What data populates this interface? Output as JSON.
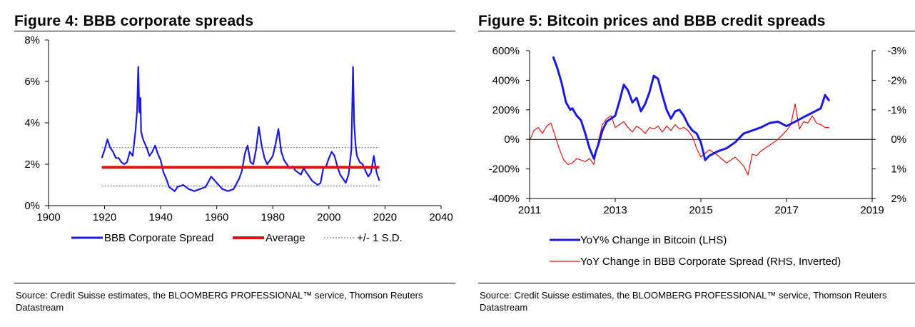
{
  "chart_data": [
    {
      "type": "line",
      "title": "Figure 4: BBB corporate spreads",
      "x_ticks": [
        "1900",
        "1920",
        "1940",
        "1960",
        "1980",
        "2000",
        "2020",
        "2040"
      ],
      "y_ticks": [
        "0%",
        "2%",
        "4%",
        "6%",
        "8%"
      ],
      "xlim": [
        1900,
        2040
      ],
      "ylim": [
        0,
        8
      ],
      "series": [
        {
          "name": "BBB Corporate Spread",
          "color": "#1a1adf",
          "x": [
            1919,
            1920,
            1921,
            1922,
            1923,
            1924,
            1925,
            1926,
            1927,
            1928,
            1929,
            1930,
            1931,
            1931.6,
            1932,
            1932.4,
            1932.8,
            1933,
            1933.5,
            1934,
            1935,
            1936,
            1937,
            1938,
            1939,
            1940,
            1941,
            1942,
            1943,
            1944,
            1945,
            1946,
            1948,
            1950,
            1952,
            1954,
            1956,
            1958,
            1960,
            1962,
            1964,
            1966,
            1968,
            1969,
            1970,
            1971,
            1972,
            1973,
            1974,
            1975,
            1976,
            1977,
            1978,
            1979,
            1980,
            1981,
            1982,
            1983,
            1984,
            1985,
            1986,
            1987,
            1988,
            1989,
            1990,
            1991,
            1992,
            1993,
            1994,
            1995,
            1996,
            1997,
            1998,
            1999,
            2000,
            2001,
            2002,
            2003,
            2004,
            2005,
            2006,
            2007,
            2008,
            2008.6,
            2009,
            2009.5,
            2010,
            2011,
            2012,
            2013,
            2014,
            2015,
            2016,
            2017,
            2018
          ],
          "values": [
            2.3,
            2.7,
            3.2,
            2.8,
            2.6,
            2.3,
            2.3,
            2.1,
            2.0,
            2.1,
            2.6,
            2.4,
            3.6,
            4.6,
            6.7,
            4.5,
            5.2,
            3.6,
            3.3,
            3.1,
            2.8,
            2.4,
            2.6,
            2.9,
            2.5,
            2.2,
            1.6,
            1.3,
            0.9,
            0.8,
            0.7,
            0.9,
            1.0,
            0.8,
            0.7,
            0.8,
            0.9,
            1.4,
            1.1,
            0.8,
            0.7,
            0.8,
            1.3,
            1.7,
            2.5,
            2.9,
            2.1,
            2.0,
            2.7,
            3.8,
            2.9,
            2.3,
            2.0,
            2.2,
            2.4,
            3.0,
            3.7,
            2.6,
            2.2,
            2.0,
            1.8,
            1.9,
            1.7,
            1.6,
            1.5,
            1.8,
            1.6,
            1.4,
            1.2,
            1.1,
            1.0,
            1.1,
            1.8,
            1.9,
            2.3,
            2.6,
            2.4,
            1.9,
            1.5,
            1.3,
            1.1,
            1.5,
            2.7,
            6.7,
            4.0,
            2.9,
            2.4,
            2.1,
            2.0,
            1.7,
            1.4,
            1.6,
            2.4,
            1.6,
            1.2
          ]
        },
        {
          "name": "Average",
          "color": "#e01010",
          "constant": 1.85
        },
        {
          "name": "+/- 1 S.D.",
          "color": "#555555",
          "upper": 2.8,
          "lower": 0.95
        }
      ],
      "legend": [
        "BBB Corporate Spread",
        "Average",
        "+/- 1 S.D."
      ],
      "legend_position": "bottom"
    },
    {
      "type": "line",
      "title": "Figure 5: Bitcoin prices and BBB credit spreads",
      "x_ticks": [
        "2011",
        "2013",
        "2015",
        "2017",
        "2019"
      ],
      "y_left_ticks": [
        "-400%",
        "-200%",
        "0%",
        "200%",
        "400%",
        "600%"
      ],
      "y_right_ticks": [
        "2%",
        "1%",
        "0%",
        "-1%",
        "-2%",
        "-3%"
      ],
      "xlim": [
        2011,
        2019
      ],
      "ylim_left": [
        -400,
        600
      ],
      "ylim_right_inverted": [
        2,
        -3
      ],
      "series": [
        {
          "name": "YoY% Change in Bitcoin (LHS)",
          "axis": "left",
          "color": "#1a1adf",
          "x": [
            2011.55,
            2011.65,
            2011.75,
            2011.85,
            2011.95,
            2012.0,
            2012.1,
            2012.2,
            2012.3,
            2012.4,
            2012.5,
            2012.55,
            2012.6,
            2012.7,
            2012.8,
            2012.9,
            2013.0,
            2013.1,
            2013.2,
            2013.3,
            2013.4,
            2013.5,
            2013.6,
            2013.7,
            2013.8,
            2013.9,
            2014.0,
            2014.1,
            2014.2,
            2014.3,
            2014.4,
            2014.5,
            2014.6,
            2014.7,
            2014.8,
            2014.9,
            2015.0,
            2015.1,
            2015.2,
            2015.4,
            2015.6,
            2015.8,
            2016.0,
            2016.2,
            2016.4,
            2016.6,
            2016.8,
            2017.0,
            2017.2,
            2017.4,
            2017.6,
            2017.8,
            2017.9,
            2018.0
          ],
          "values": [
            560,
            480,
            380,
            250,
            200,
            210,
            160,
            130,
            40,
            -60,
            -130,
            -80,
            -40,
            60,
            120,
            140,
            160,
            260,
            370,
            330,
            250,
            280,
            190,
            240,
            320,
            430,
            410,
            300,
            200,
            140,
            190,
            200,
            160,
            100,
            60,
            40,
            -20,
            -140,
            -110,
            -80,
            -60,
            -20,
            40,
            60,
            80,
            110,
            120,
            90,
            120,
            150,
            180,
            210,
            300,
            260
          ]
        },
        {
          "name": "YoY Change in BBB Corporate Spread (RHS, Inverted)",
          "axis": "right",
          "color": "#e01010",
          "x": [
            2011.0,
            2011.1,
            2011.2,
            2011.3,
            2011.4,
            2011.5,
            2011.6,
            2011.7,
            2011.8,
            2011.9,
            2012.0,
            2012.1,
            2012.2,
            2012.3,
            2012.4,
            2012.5,
            2012.6,
            2012.7,
            2012.8,
            2012.9,
            2013.0,
            2013.1,
            2013.2,
            2013.3,
            2013.4,
            2013.5,
            2013.6,
            2013.7,
            2013.8,
            2013.9,
            2014.0,
            2014.1,
            2014.2,
            2014.3,
            2014.4,
            2014.5,
            2014.6,
            2014.7,
            2014.8,
            2014.9,
            2015.0,
            2015.2,
            2015.4,
            2015.6,
            2015.8,
            2016.0,
            2016.1,
            2016.2,
            2016.3,
            2016.4,
            2016.6,
            2016.8,
            2017.0,
            2017.1,
            2017.2,
            2017.3,
            2017.4,
            2017.5,
            2017.6,
            2017.7,
            2017.8,
            2017.9,
            2018.0
          ],
          "values": [
            0.05,
            -0.3,
            -0.4,
            -0.2,
            -0.45,
            -0.55,
            -0.1,
            0.35,
            0.7,
            0.85,
            0.8,
            0.65,
            0.7,
            0.75,
            0.65,
            0.85,
            0.1,
            -0.5,
            -0.7,
            -0.8,
            -0.4,
            -0.5,
            -0.6,
            -0.4,
            -0.25,
            -0.45,
            -0.35,
            -0.2,
            -0.4,
            -0.35,
            -0.45,
            -0.25,
            -0.45,
            -0.3,
            -0.5,
            -0.35,
            -0.4,
            -0.3,
            -0.1,
            0.3,
            0.6,
            0.35,
            0.55,
            0.8,
            0.6,
            0.9,
            1.2,
            0.5,
            0.55,
            0.4,
            0.2,
            0.0,
            -0.3,
            -0.5,
            -1.2,
            -0.35,
            -0.6,
            -0.55,
            -0.8,
            -0.55,
            -0.5,
            -0.4,
            -0.4
          ]
        }
      ],
      "legend": [
        "YoY% Change in Bitcoin (LHS)",
        "YoY Change in BBB Corporate Spread (RHS, Inverted)"
      ],
      "legend_position": "bottom"
    }
  ],
  "figures": {
    "left": {
      "title": "Figure 4: BBB corporate spreads",
      "source": "Source: Credit Suisse estimates, the BLOOMBERG PROFESSIONAL™ service, Thomson Reuters Datastream"
    },
    "right": {
      "title": "Figure 5: Bitcoin prices and BBB credit spreads",
      "source": "Source: Credit Suisse estimates, the BLOOMBERG PROFESSIONAL™ service, Thomson Reuters Datastream"
    }
  }
}
